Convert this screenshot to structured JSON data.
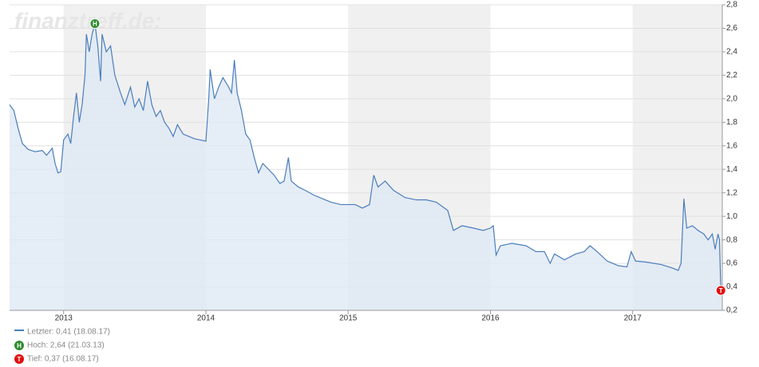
{
  "chart_data": {
    "type": "line",
    "watermark": "finanztreff.de:",
    "x": [
      2012.62,
      2012.65,
      2012.68,
      2012.71,
      2012.75,
      2012.8,
      2012.85,
      2012.88,
      2012.92,
      2012.94,
      2012.96,
      2012.98,
      2013.0,
      2013.03,
      2013.05,
      2013.07,
      2013.09,
      2013.11,
      2013.13,
      2013.15,
      2013.16,
      2013.18,
      2013.2,
      2013.22,
      2013.24,
      2013.26,
      2013.27,
      2013.3,
      2013.33,
      2013.36,
      2013.4,
      2013.43,
      2013.47,
      2013.5,
      2013.53,
      2013.56,
      2013.59,
      2013.62,
      2013.65,
      2013.68,
      2013.71,
      2013.74,
      2013.77,
      2013.8,
      2013.84,
      2013.88,
      2013.92,
      2013.96,
      2014.0,
      2014.02,
      2014.03,
      2014.06,
      2014.09,
      2014.12,
      2014.16,
      2014.18,
      2014.2,
      2014.22,
      2014.25,
      2014.28,
      2014.31,
      2014.34,
      2014.37,
      2014.4,
      2014.44,
      2014.48,
      2014.52,
      2014.55,
      2014.58,
      2014.6,
      2014.65,
      2014.7,
      2014.76,
      2014.82,
      2014.88,
      2014.95,
      2015.0,
      2015.05,
      2015.1,
      2015.15,
      2015.18,
      2015.21,
      2015.26,
      2015.32,
      2015.4,
      2015.48,
      2015.55,
      2015.62,
      2015.7,
      2015.74,
      2015.8,
      2015.88,
      2015.95,
      2016.0,
      2016.02,
      2016.04,
      2016.07,
      2016.15,
      2016.25,
      2016.32,
      2016.38,
      2016.42,
      2016.45,
      2016.52,
      2016.6,
      2016.66,
      2016.7,
      2016.75,
      2016.82,
      2016.9,
      2016.96,
      2016.99,
      2017.02,
      2017.1,
      2017.2,
      2017.28,
      2017.32,
      2017.34,
      2017.36,
      2017.38,
      2017.42,
      2017.46,
      2017.5,
      2017.53,
      2017.56,
      2017.58,
      2017.6,
      2017.61,
      2017.62,
      2017.63
    ],
    "series": [
      {
        "name": "Letzter: 0,41 (18.08.17)",
        "color": "#4a7ebb",
        "fill": "#dfe8f5",
        "values": [
          1.95,
          1.9,
          1.75,
          1.62,
          1.57,
          1.55,
          1.56,
          1.52,
          1.58,
          1.45,
          1.37,
          1.38,
          1.65,
          1.7,
          1.62,
          1.85,
          2.05,
          1.8,
          1.95,
          2.2,
          2.55,
          2.4,
          2.55,
          2.64,
          2.45,
          2.15,
          2.55,
          2.4,
          2.45,
          2.2,
          2.05,
          1.95,
          2.1,
          1.93,
          2.0,
          1.9,
          2.15,
          1.95,
          1.85,
          1.9,
          1.8,
          1.75,
          1.68,
          1.78,
          1.7,
          1.68,
          1.66,
          1.65,
          1.64,
          2.0,
          2.25,
          2.0,
          2.1,
          2.18,
          2.1,
          2.05,
          2.33,
          2.05,
          1.9,
          1.7,
          1.65,
          1.5,
          1.37,
          1.45,
          1.4,
          1.35,
          1.28,
          1.3,
          1.5,
          1.3,
          1.25,
          1.22,
          1.18,
          1.15,
          1.12,
          1.1,
          1.1,
          1.1,
          1.07,
          1.1,
          1.35,
          1.25,
          1.3,
          1.22,
          1.16,
          1.14,
          1.14,
          1.12,
          1.05,
          0.88,
          0.92,
          0.9,
          0.88,
          0.9,
          0.92,
          0.67,
          0.75,
          0.77,
          0.75,
          0.7,
          0.7,
          0.6,
          0.68,
          0.63,
          0.68,
          0.7,
          0.75,
          0.7,
          0.62,
          0.58,
          0.57,
          0.7,
          0.62,
          0.61,
          0.59,
          0.56,
          0.54,
          0.6,
          1.15,
          0.9,
          0.92,
          0.88,
          0.85,
          0.8,
          0.85,
          0.72,
          0.85,
          0.8,
          0.37,
          0.41
        ]
      }
    ],
    "annotations": [
      {
        "label": "H",
        "x": 2013.22,
        "y": 2.64,
        "color": "#2e8b2e",
        "legend": "Hoch: 2,64 (21.03.13)"
      },
      {
        "label": "T",
        "x": 2017.62,
        "y": 0.37,
        "color": "#e01010",
        "legend": "Tief: 0,37 (16.08.17)"
      }
    ],
    "xlim": [
      2012.62,
      2017.63
    ],
    "xticks": [
      2013,
      2014,
      2015,
      2016,
      2017
    ],
    "ylim": [
      0.2,
      2.8
    ],
    "yticks": [
      {
        "value": 0.2,
        "label": "0,2"
      },
      {
        "value": 0.4,
        "label": "0,4"
      },
      {
        "value": 0.6,
        "label": "0,6"
      },
      {
        "value": 0.8,
        "label": "0,8"
      },
      {
        "value": 1.0,
        "label": "1,0"
      },
      {
        "value": 1.2,
        "label": "1,2"
      },
      {
        "value": 1.4,
        "label": "1,4"
      },
      {
        "value": 1.6,
        "label": "1,6"
      },
      {
        "value": 1.8,
        "label": "1,8"
      },
      {
        "value": 2.0,
        "label": "2,0"
      },
      {
        "value": 2.2,
        "label": "2,2"
      },
      {
        "value": 2.4,
        "label": "2,4"
      },
      {
        "value": 2.6,
        "label": "2,6"
      },
      {
        "value": 2.8,
        "label": "2,8"
      }
    ],
    "grid": true
  }
}
